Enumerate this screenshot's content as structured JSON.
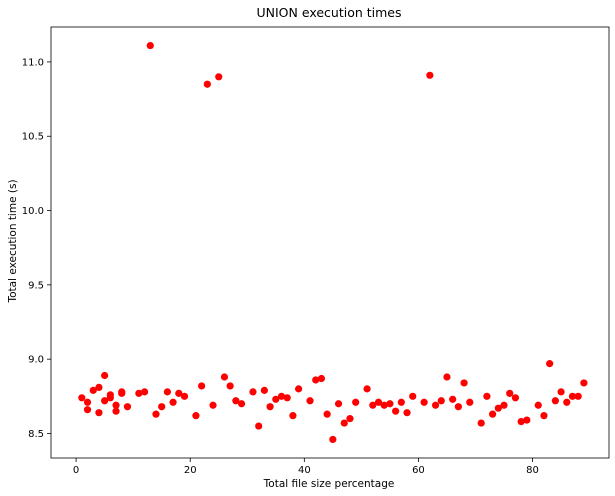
{
  "chart_data": {
    "type": "scatter",
    "title": "UNION execution times",
    "xlabel": "Total file size percentage",
    "ylabel": "Total execution time (s)",
    "xlim": [
      -4.4,
      93.4
    ],
    "ylim": [
      8.335,
      11.235
    ],
    "xticks": [
      0,
      20,
      40,
      60,
      80
    ],
    "yticks": [
      8.5,
      9.0,
      9.5,
      10.0,
      10.5,
      11.0
    ],
    "xtick_labels": [
      "0",
      "20",
      "40",
      "60",
      "80"
    ],
    "ytick_labels": [
      "8.5",
      "9.0",
      "9.5",
      "10.0",
      "10.5",
      "11.0"
    ],
    "grid": false,
    "marker_color": "#ff0000",
    "points": [
      {
        "x": 1,
        "y": 8.74
      },
      {
        "x": 2,
        "y": 8.71
      },
      {
        "x": 2,
        "y": 8.66
      },
      {
        "x": 3,
        "y": 8.79
      },
      {
        "x": 4,
        "y": 8.81
      },
      {
        "x": 4,
        "y": 8.64
      },
      {
        "x": 5,
        "y": 8.89
      },
      {
        "x": 5,
        "y": 8.72
      },
      {
        "x": 6,
        "y": 8.76
      },
      {
        "x": 6,
        "y": 8.74
      },
      {
        "x": 7,
        "y": 8.69
      },
      {
        "x": 7,
        "y": 8.65
      },
      {
        "x": 8,
        "y": 8.78
      },
      {
        "x": 8,
        "y": 8.77
      },
      {
        "x": 9,
        "y": 8.68
      },
      {
        "x": 11,
        "y": 8.77
      },
      {
        "x": 12,
        "y": 8.78
      },
      {
        "x": 13,
        "y": 11.11
      },
      {
        "x": 14,
        "y": 8.63
      },
      {
        "x": 15,
        "y": 8.68
      },
      {
        "x": 16,
        "y": 8.78
      },
      {
        "x": 17,
        "y": 8.71
      },
      {
        "x": 18,
        "y": 8.77
      },
      {
        "x": 19,
        "y": 8.75
      },
      {
        "x": 21,
        "y": 8.62
      },
      {
        "x": 22,
        "y": 8.82
      },
      {
        "x": 23,
        "y": 10.85
      },
      {
        "x": 24,
        "y": 8.69
      },
      {
        "x": 25,
        "y": 10.9
      },
      {
        "x": 26,
        "y": 8.88
      },
      {
        "x": 27,
        "y": 8.82
      },
      {
        "x": 28,
        "y": 8.72
      },
      {
        "x": 29,
        "y": 8.7
      },
      {
        "x": 31,
        "y": 8.78
      },
      {
        "x": 32,
        "y": 8.55
      },
      {
        "x": 33,
        "y": 8.79
      },
      {
        "x": 34,
        "y": 8.68
      },
      {
        "x": 35,
        "y": 8.73
      },
      {
        "x": 36,
        "y": 8.75
      },
      {
        "x": 37,
        "y": 8.74
      },
      {
        "x": 38,
        "y": 8.62
      },
      {
        "x": 39,
        "y": 8.8
      },
      {
        "x": 41,
        "y": 8.72
      },
      {
        "x": 42,
        "y": 8.86
      },
      {
        "x": 43,
        "y": 8.87
      },
      {
        "x": 44,
        "y": 8.63
      },
      {
        "x": 45,
        "y": 8.46
      },
      {
        "x": 46,
        "y": 8.7
      },
      {
        "x": 47,
        "y": 8.57
      },
      {
        "x": 48,
        "y": 8.6
      },
      {
        "x": 49,
        "y": 8.71
      },
      {
        "x": 51,
        "y": 8.8
      },
      {
        "x": 52,
        "y": 8.69
      },
      {
        "x": 53,
        "y": 8.71
      },
      {
        "x": 54,
        "y": 8.69
      },
      {
        "x": 55,
        "y": 8.7
      },
      {
        "x": 56,
        "y": 8.65
      },
      {
        "x": 57,
        "y": 8.71
      },
      {
        "x": 58,
        "y": 8.64
      },
      {
        "x": 59,
        "y": 8.75
      },
      {
        "x": 61,
        "y": 8.71
      },
      {
        "x": 62,
        "y": 10.91
      },
      {
        "x": 63,
        "y": 8.69
      },
      {
        "x": 64,
        "y": 8.72
      },
      {
        "x": 65,
        "y": 8.88
      },
      {
        "x": 66,
        "y": 8.73
      },
      {
        "x": 67,
        "y": 8.68
      },
      {
        "x": 68,
        "y": 8.84
      },
      {
        "x": 69,
        "y": 8.71
      },
      {
        "x": 71,
        "y": 8.57
      },
      {
        "x": 72,
        "y": 8.75
      },
      {
        "x": 73,
        "y": 8.63
      },
      {
        "x": 74,
        "y": 8.67
      },
      {
        "x": 75,
        "y": 8.69
      },
      {
        "x": 76,
        "y": 8.77
      },
      {
        "x": 77,
        "y": 8.74
      },
      {
        "x": 78,
        "y": 8.58
      },
      {
        "x": 79,
        "y": 8.59
      },
      {
        "x": 81,
        "y": 8.69
      },
      {
        "x": 82,
        "y": 8.62
      },
      {
        "x": 83,
        "y": 8.97
      },
      {
        "x": 84,
        "y": 8.72
      },
      {
        "x": 85,
        "y": 8.78
      },
      {
        "x": 86,
        "y": 8.71
      },
      {
        "x": 87,
        "y": 8.75
      },
      {
        "x": 88,
        "y": 8.75
      },
      {
        "x": 89,
        "y": 8.84
      }
    ]
  }
}
